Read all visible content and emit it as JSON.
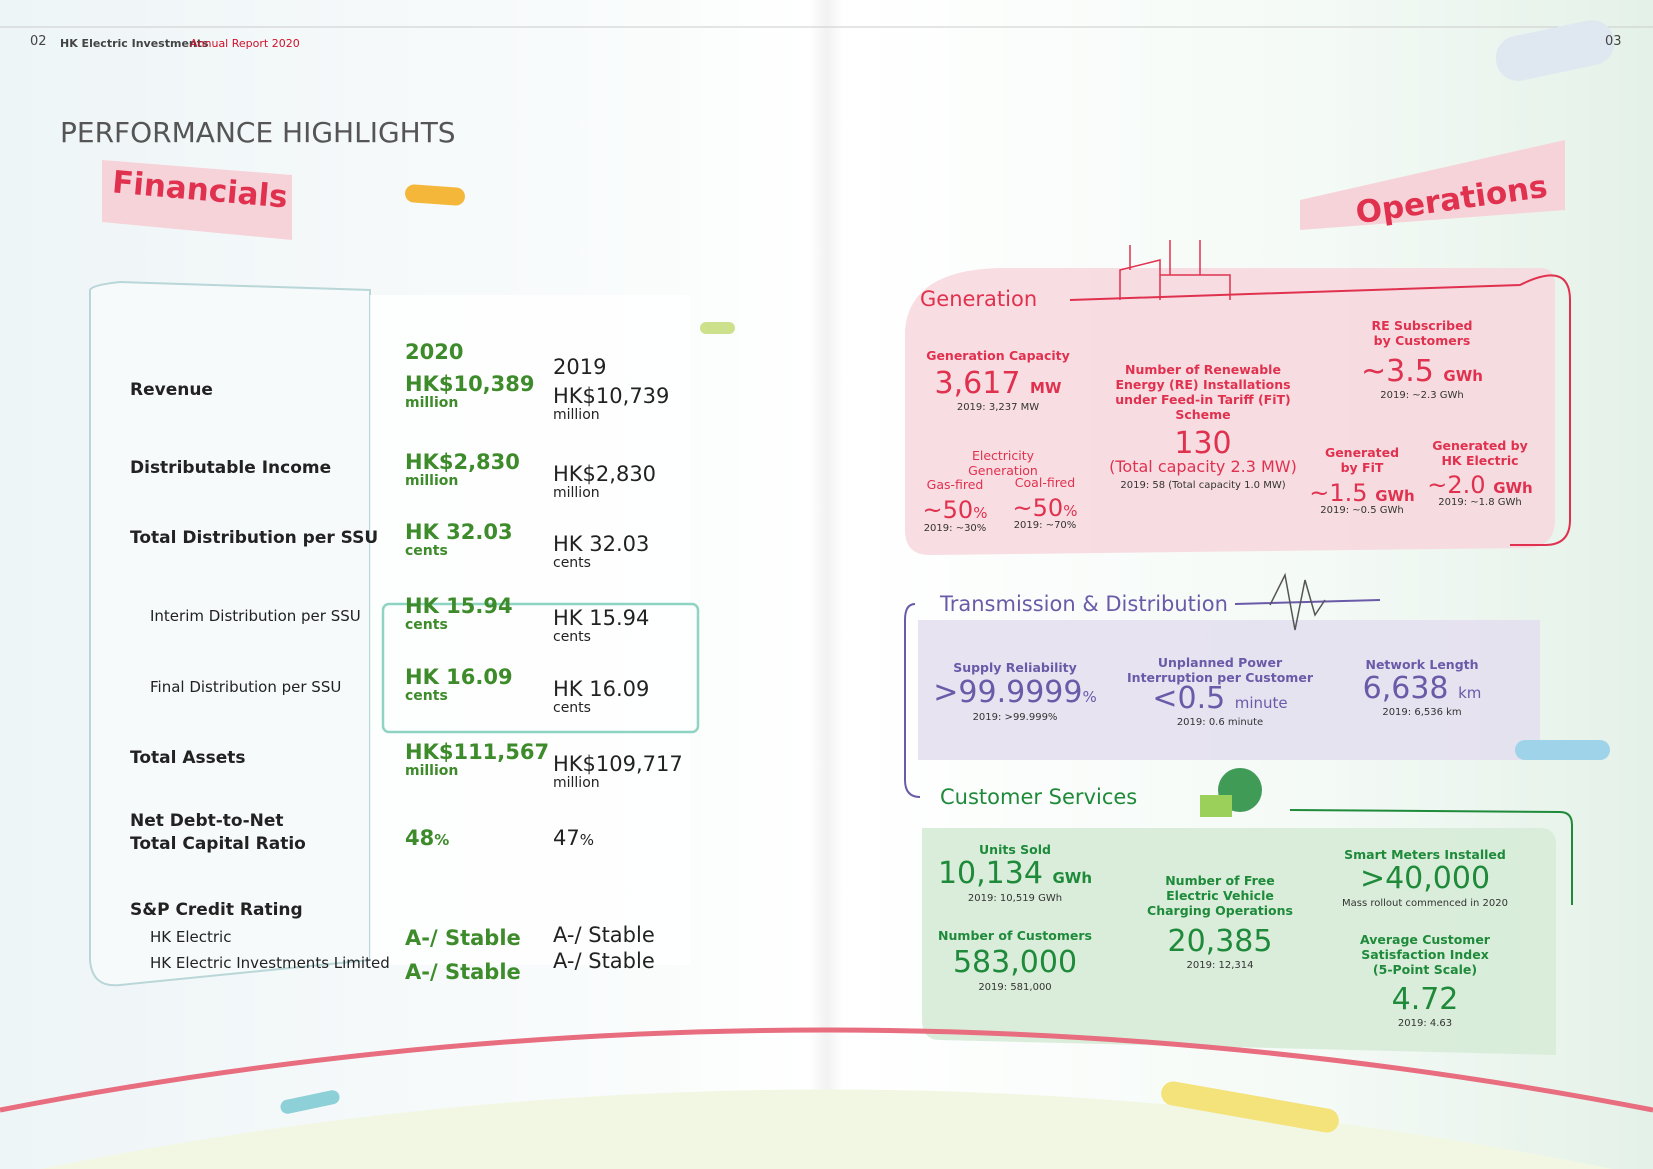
{
  "header": {
    "left_page_number": "02",
    "company": "HK Electric Investments",
    "report": "Annual Report 2020",
    "right_page_number": "03"
  },
  "title": "PERFORMANCE HIGHLIGHTS",
  "financials": {
    "heading": "Financials",
    "columns": [
      "2020",
      "2019"
    ],
    "rows": [
      {
        "label": "Revenue",
        "v2020": "HK$10,389",
        "u2020": "million",
        "v2019": "HK$10,739",
        "u2019": "million"
      },
      {
        "label": "Distributable Income",
        "v2020": "HK$2,830",
        "u2020": "million",
        "v2019": "HK$2,830",
        "u2019": "million"
      },
      {
        "label": "Total Distribution per SSU",
        "v2020": "HK 32.03",
        "u2020": "cents",
        "v2019": "HK 32.03",
        "u2019": "cents"
      },
      {
        "label": "Interim Distribution per SSU",
        "v2020": "HK 15.94",
        "u2020": "cents",
        "v2019": "HK 15.94",
        "u2019": "cents"
      },
      {
        "label": "Final Distribution per SSU",
        "v2020": "HK 16.09",
        "u2020": "cents",
        "v2019": "HK 16.09",
        "u2019": "cents"
      },
      {
        "label": "Total Assets",
        "v2020": "HK$111,567",
        "u2020": "million",
        "v2019": "HK$109,717",
        "u2019": "million"
      },
      {
        "label": "Net Debt-to-Net Total Capital Ratio",
        "v2020": "48",
        "u2020": "%",
        "v2019": "47",
        "u2019": "%"
      }
    ],
    "credit": {
      "label": "S&P Credit Rating",
      "items": [
        {
          "label": "HK Electric",
          "v2020": "A-/ Stable",
          "v2019": "A-/ Stable"
        },
        {
          "label": "HK Electric Investments Limited",
          "v2020": "A-/ Stable",
          "v2019": "A-/ Stable"
        }
      ]
    }
  },
  "operations": {
    "heading": "Operations",
    "generation": {
      "heading": "Generation",
      "capacity": {
        "label": "Generation Capacity",
        "value": "3,617",
        "unit": "MW",
        "note": "2019: 3,237 MW"
      },
      "electricity": {
        "label": "Electricity Generation",
        "gas": {
          "label": "Gas-fired",
          "value": "~50",
          "unit": "%",
          "note": "2019: ~30%"
        },
        "coal": {
          "label": "Coal-fired",
          "value": "~50",
          "unit": "%",
          "note": "2019: ~70%"
        }
      },
      "fit_installations": {
        "label": "Number of Renewable Energy (RE) Installations under Feed-in Tariff (FiT) Scheme",
        "value": "130",
        "detail": "(Total capacity 2.3 MW)",
        "note": "2019: 58 (Total capacity 1.0 MW)"
      },
      "re_subscribed": {
        "label": "RE Subscribed by Customers",
        "value": "~3.5",
        "unit": "GWh",
        "note": "2019: ~2.3 GWh"
      },
      "by_fit": {
        "label": "Generated by FiT",
        "value": "~1.5",
        "unit": "GWh",
        "note": "2019: ~0.5 GWh"
      },
      "by_hk_electric": {
        "label": "Generated by HK Electric",
        "value": "~2.0",
        "unit": "GWh",
        "note": "2019: ~1.8 GWh"
      }
    },
    "transmission": {
      "heading": "Transmission & Distribution",
      "reliability": {
        "label": "Supply Reliability",
        "value": ">99.9999",
        "unit": "%",
        "note": "2019: >99.999%"
      },
      "interruption": {
        "label": "Unplanned Power Interruption per Customer",
        "value": "<0.5",
        "unit": "minute",
        "note": "2019: 0.6 minute"
      },
      "network": {
        "label": "Network Length",
        "value": "6,638",
        "unit": "km",
        "note": "2019: 6,536 km"
      }
    },
    "customer": {
      "heading": "Customer Services",
      "units_sold": {
        "label": "Units Sold",
        "value": "10,134",
        "unit": "GWh",
        "note": "2019: 10,519 GWh"
      },
      "customers": {
        "label": "Number of Customers",
        "value": "583,000",
        "note": "2019: 581,000"
      },
      "ev_charging": {
        "label": "Number of Free Electric Vehicle Charging Operations",
        "value": "20,385",
        "note": "2019: 12,314"
      },
      "smart_meters": {
        "label": "Smart Meters Installed",
        "value": ">40,000",
        "note": "Mass rollout commenced in 2020"
      },
      "satisfaction": {
        "label": "Average Customer Satisfaction Index (5-Point Scale)",
        "value": "4.72",
        "note": "2019: 4.63"
      }
    }
  }
}
